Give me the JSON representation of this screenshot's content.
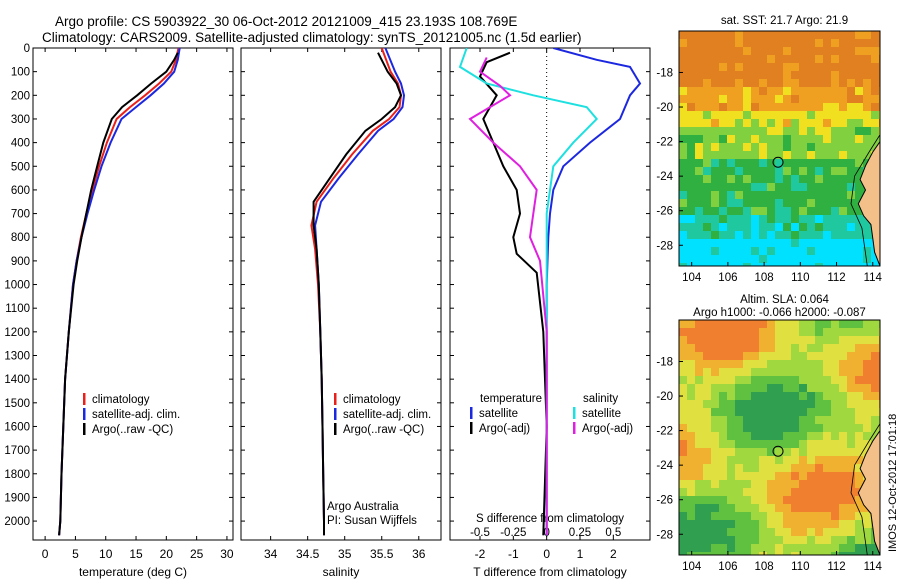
{
  "titles": {
    "line1": "Argo profile: CS 5903922_30 06-Oct-2012 20121009_415 23.193S 108.769E",
    "line2": "Climatology: CARS2009. Satellite-adjusted climatology: synTS_20121005.nc (1.5d earlier)"
  },
  "stamp": "IMOS 12-Oct-2012 17:01:18",
  "colors": {
    "climatology": "#e8201c",
    "satellite": "#1c28e0",
    "argo": "#000000",
    "sat_salinity": "#1ee0e0",
    "argo_salinity_adj": "#e020e0"
  },
  "chart_data": [
    {
      "type": "line",
      "name": "temperature",
      "xlabel": "temperature (deg C)",
      "ylabel": "",
      "xlim": [
        -2,
        31
      ],
      "ylim": [
        2080,
        0
      ],
      "xticks": [
        0,
        5,
        10,
        15,
        20,
        25,
        30
      ],
      "yticks": [
        0,
        100,
        200,
        300,
        400,
        500,
        600,
        700,
        800,
        900,
        1000,
        1100,
        1200,
        1300,
        1400,
        1500,
        1600,
        1700,
        1800,
        1900,
        2000
      ],
      "legend": {
        "placement": "center",
        "entries": [
          "climatology",
          "satellite-adj. clim.",
          "Argo(..raw -QC)"
        ]
      },
      "series": [
        {
          "name": "climatology",
          "color": "#e8201c",
          "x": [
            22.0,
            21.6,
            20.8,
            18.8,
            16.5,
            14.0,
            11.8,
            10.2,
            8.9,
            7.8,
            6.8,
            5.9,
            5.2,
            4.6,
            3.9,
            3.3,
            3.0,
            2.7,
            2.5,
            2.3
          ],
          "y": [
            0,
            50,
            100,
            150,
            200,
            250,
            300,
            400,
            500,
            600,
            700,
            800,
            900,
            1000,
            1200,
            1400,
            1600,
            1800,
            2000,
            2060
          ]
        },
        {
          "name": "satellite-adj. clim.",
          "color": "#1c28e0",
          "x": [
            22.2,
            21.9,
            21.3,
            19.6,
            17.4,
            15.0,
            12.6,
            10.8,
            9.3,
            8.1,
            7.0,
            6.0,
            5.2,
            4.6,
            3.9,
            3.3,
            3.0,
            2.7,
            2.5,
            2.3
          ],
          "y": [
            0,
            50,
            100,
            150,
            200,
            250,
            300,
            400,
            500,
            600,
            700,
            800,
            900,
            1000,
            1200,
            1400,
            1600,
            1800,
            2000,
            2060
          ]
        },
        {
          "name": "Argo(..raw -QC)",
          "color": "#000000",
          "x": [
            21.9,
            21.3,
            20.0,
            17.5,
            15.2,
            12.7,
            11.0,
            9.6,
            8.6,
            7.6,
            6.8,
            6.0,
            5.3,
            4.7,
            3.9,
            3.3,
            3.0,
            2.7,
            2.5,
            2.3
          ],
          "y": [
            20,
            50,
            100,
            150,
            200,
            250,
            300,
            400,
            500,
            600,
            700,
            800,
            900,
            1000,
            1200,
            1400,
            1600,
            1800,
            2000,
            2060
          ]
        }
      ]
    },
    {
      "type": "line",
      "name": "salinity",
      "xlabel": "salinity",
      "ylabel": "",
      "xlim": [
        33.6,
        36.3
      ],
      "ylim": [
        2080,
        0
      ],
      "xticks": [
        34,
        34.5,
        35,
        35.5,
        36
      ],
      "legend": {
        "placement": "center",
        "entries": [
          "climatology",
          "satellite-adj. clim.",
          "Argo(..raw -QC)"
        ]
      },
      "annotations": [
        "Argo Australia",
        "PI: Susan Wijffels"
      ],
      "series": [
        {
          "name": "climatology",
          "color": "#e8201c",
          "x": [
            35.5,
            35.62,
            35.72,
            35.76,
            35.74,
            35.6,
            35.38,
            35.1,
            34.85,
            34.62,
            34.55,
            34.6,
            34.64,
            34.67,
            34.69,
            34.7,
            34.71,
            34.72,
            34.72
          ],
          "y": [
            0,
            100,
            150,
            200,
            250,
            300,
            350,
            450,
            550,
            650,
            750,
            850,
            1000,
            1200,
            1400,
            1600,
            1800,
            2000,
            2060
          ]
        },
        {
          "name": "satellite-adj. clim.",
          "color": "#1c28e0",
          "x": [
            35.55,
            35.68,
            35.76,
            35.8,
            35.78,
            35.66,
            35.45,
            35.18,
            34.92,
            34.68,
            34.6,
            34.62,
            34.65,
            34.67,
            34.69,
            34.7,
            34.71,
            34.72,
            34.72
          ],
          "y": [
            0,
            100,
            150,
            200,
            250,
            300,
            350,
            450,
            550,
            650,
            750,
            850,
            1000,
            1200,
            1400,
            1600,
            1800,
            2000,
            2060
          ]
        },
        {
          "name": "Argo(..raw -QC)",
          "color": "#000000",
          "x": [
            35.45,
            35.58,
            35.7,
            35.76,
            35.68,
            35.5,
            35.28,
            35.02,
            34.8,
            34.58,
            34.58,
            34.62,
            34.65,
            34.67,
            34.69,
            34.7,
            34.71,
            34.72,
            34.72
          ],
          "y": [
            20,
            100,
            150,
            200,
            250,
            300,
            350,
            450,
            550,
            650,
            750,
            850,
            1000,
            1200,
            1400,
            1600,
            1800,
            2000,
            2060
          ]
        }
      ]
    },
    {
      "type": "line",
      "name": "difference",
      "xlabel": "T difference from climatology",
      "xlabel_top": "S difference from climatology",
      "xlim": [
        -2.9,
        3.1
      ],
      "ylim": [
        2080,
        0
      ],
      "xticks": [
        -2,
        -1,
        0,
        1,
        2
      ],
      "top_ticks": [
        "-0.5",
        "-0.25",
        "0",
        "0.25",
        "0.5"
      ],
      "legend": {
        "placement": "center",
        "titles": [
          "temperature",
          "salinity"
        ],
        "entries": [
          "satellite",
          "Argo(-adj)",
          "satellite",
          "Argo(-adj)"
        ]
      },
      "series": [
        {
          "name": "satellite",
          "color": "#1c28e0",
          "x": [
            0.2,
            1.5,
            2.5,
            2.8,
            2.5,
            2.2,
            1.3,
            0.5,
            0.2,
            0.1,
            0.05,
            0.0,
            0.0,
            0.0,
            0.0
          ],
          "y": [
            0,
            50,
            80,
            150,
            200,
            300,
            400,
            500,
            600,
            700,
            800,
            1000,
            1400,
            1800,
            2060
          ]
        },
        {
          "name": "Argo(-adj)",
          "color": "#000000",
          "x": [
            -1.1,
            -1.8,
            -2.0,
            -1.5,
            -1.9,
            -1.6,
            -1.3,
            -0.9,
            -0.8,
            -1.0,
            -0.9,
            -0.3,
            -0.1,
            0.0,
            -0.1
          ],
          "y": [
            20,
            60,
            120,
            200,
            300,
            400,
            500,
            600,
            700,
            800,
            870,
            950,
            1200,
            1600,
            2060
          ]
        },
        {
          "name": "satellite",
          "color": "#1ee0e0",
          "x": [
            -2.4,
            -2.6,
            -1.8,
            -0.4,
            1.2,
            1.5,
            0.8,
            0.2,
            0.0,
            0.0,
            0.0,
            0.0,
            0.0
          ],
          "y": [
            0,
            80,
            150,
            200,
            250,
            300,
            400,
            500,
            700,
            900,
            1200,
            1600,
            2060
          ]
        },
        {
          "name": "Argo(-adj)",
          "color": "#e020e0",
          "x": [
            -1.8,
            -2.0,
            -1.4,
            -1.1,
            -2.3,
            -1.6,
            -0.8,
            -0.3,
            -0.4,
            -0.5,
            -0.2,
            0.0,
            0.0
          ],
          "y": [
            40,
            100,
            160,
            200,
            300,
            400,
            500,
            600,
            700,
            800,
            900,
            1200,
            2060
          ]
        }
      ]
    },
    {
      "type": "heatmap",
      "name": "sst-map",
      "title": "sat. SST: 21.7 Argo: 21.9",
      "xlim": [
        103.3,
        114.4
      ],
      "ylim": [
        -29.2,
        -15.6
      ],
      "xticks": [
        104,
        106,
        108,
        110,
        112,
        114
      ],
      "yticks": [
        -18,
        -20,
        -22,
        -24,
        -26,
        -28
      ],
      "argo_position": {
        "lon": 108.769,
        "lat": -23.193
      },
      "palette": [
        "#00e0ff",
        "#20c8a0",
        "#30b040",
        "#80d040",
        "#f0e020",
        "#f0a020",
        "#e08020"
      ],
      "bands": [
        {
          "lat_from": -15.6,
          "lat_to": -18.5,
          "value": 6
        },
        {
          "lat_from": -18.5,
          "lat_to": -20.0,
          "value": 5
        },
        {
          "lat_from": -20.0,
          "lat_to": -21.0,
          "value": 4
        },
        {
          "lat_from": -21.0,
          "lat_to": -23.0,
          "value": 3
        },
        {
          "lat_from": -23.0,
          "lat_to": -26.0,
          "value": 2
        },
        {
          "lat_from": -26.0,
          "lat_to": -27.3,
          "value": 1
        },
        {
          "lat_from": -27.3,
          "lat_to": -29.2,
          "value": 0
        }
      ]
    },
    {
      "type": "heatmap",
      "name": "sla-map",
      "title": "Altim. SLA: 0.064",
      "subtitle": "Argo h1000: -0.066 h2000: -0.087",
      "xlim": [
        103.3,
        114.4
      ],
      "ylim": [
        -29.2,
        -15.6
      ],
      "xticks": [
        104,
        106,
        108,
        110,
        112,
        114
      ],
      "yticks": [
        -18,
        -20,
        -22,
        -24,
        -26,
        -28
      ],
      "argo_position": {
        "lon": 108.769,
        "lat": -23.193
      },
      "palette": [
        "#30a050",
        "#60c040",
        "#a0d840",
        "#e0e040",
        "#f0b030",
        "#f08030"
      ]
    }
  ]
}
